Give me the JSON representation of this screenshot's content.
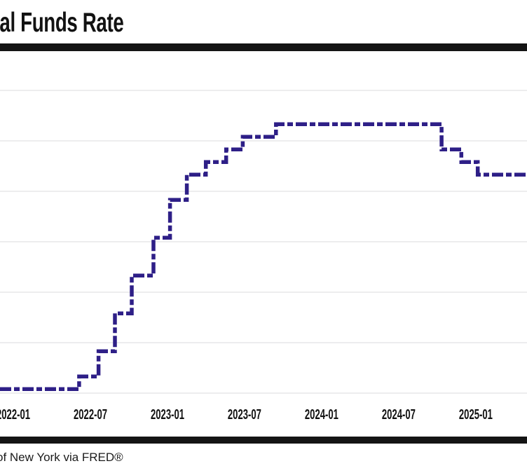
{
  "header": {
    "title_visible": "ral Funds Rate"
  },
  "chart_data": {
    "type": "line",
    "step_interpolation": "step-after",
    "line_style": "dashed",
    "line_color": "#2e1f87",
    "grid_color": "#e2e2e4",
    "rule_color": "#141414",
    "text_color": "#121212",
    "background": "#ffffff",
    "title_visible": "ral Funds Rate",
    "legend_visible": false,
    "y_axis": {
      "unit": "percent",
      "gridlines": [
        0,
        1,
        2,
        3,
        4,
        5,
        6
      ],
      "labels_visible": false,
      "ylim": [
        0,
        6.7
      ]
    },
    "x_ticks": [
      {
        "label": "2022-01",
        "date": "2022-01-01"
      },
      {
        "label": "2022-07",
        "date": "2022-07-01"
      },
      {
        "label": "2023-01",
        "date": "2023-01-01"
      },
      {
        "label": "2023-07",
        "date": "2023-07-01"
      },
      {
        "label": "2024-01",
        "date": "2024-01-01"
      },
      {
        "label": "2024-07",
        "date": "2024-07-01"
      },
      {
        "label": "2025-01",
        "date": "2025-01-01"
      }
    ],
    "series": [
      {
        "name": "rate_percent",
        "initial_value": 0.08,
        "changes": [
          {
            "date": "2022-03-17",
            "value": 0.33
          },
          {
            "date": "2022-05-05",
            "value": 0.83
          },
          {
            "date": "2022-06-16",
            "value": 1.58
          },
          {
            "date": "2022-07-28",
            "value": 2.33
          },
          {
            "date": "2022-09-22",
            "value": 3.08
          },
          {
            "date": "2022-11-03",
            "value": 3.83
          },
          {
            "date": "2022-12-15",
            "value": 4.33
          },
          {
            "date": "2023-02-02",
            "value": 4.58
          },
          {
            "date": "2023-03-23",
            "value": 4.83
          },
          {
            "date": "2023-05-04",
            "value": 5.08
          },
          {
            "date": "2023-07-27",
            "value": 5.33
          },
          {
            "date": "2024-09-19",
            "value": 4.83
          },
          {
            "date": "2024-11-08",
            "value": 4.58
          },
          {
            "date": "2024-12-19",
            "value": 4.33
          }
        ],
        "end_date": "2025-04-30"
      }
    ]
  },
  "footer": {
    "source_visible": "of New York via FRED®"
  }
}
